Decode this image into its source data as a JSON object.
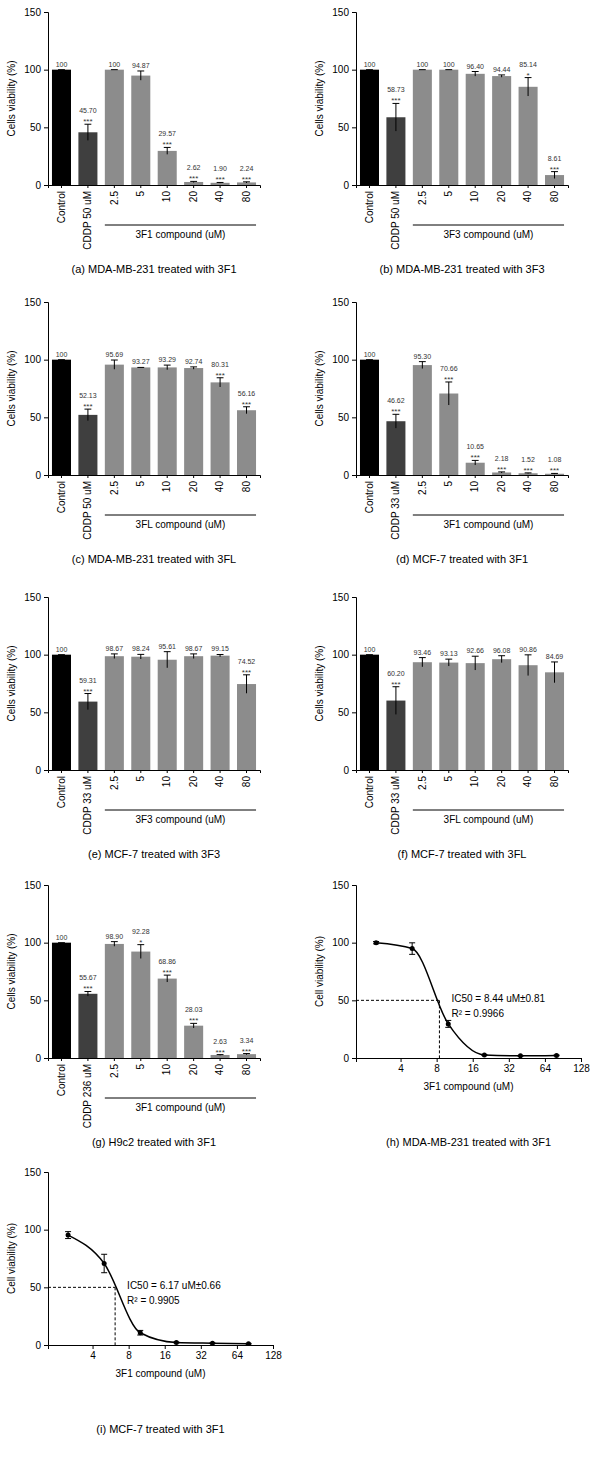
{
  "chart_data": [
    {
      "type": "bar",
      "title": "(a) MDA-MB-231 treated with 3F1",
      "y_label": "Cells viability (%)",
      "x_label": "3F1 compound (uM)",
      "categories": [
        "Control",
        "CDDP 50 uM",
        "2.5",
        "5",
        "10",
        "20",
        "40",
        "80"
      ],
      "values": [
        100,
        45.7,
        100,
        94.87,
        29.57,
        2.62,
        1.9,
        2.24
      ],
      "value_labels": [
        "100",
        "45.70",
        "100",
        "94.87",
        "29.57",
        "2.62",
        "1.90",
        "2.24"
      ],
      "errors": [
        0,
        7,
        0,
        4,
        3,
        0.5,
        0.3,
        0.5
      ],
      "significance": [
        null,
        "***",
        null,
        null,
        "***",
        "***",
        "***",
        "***"
      ],
      "colors": [
        "#000000",
        "#3f3f3f",
        "#8c8c8c",
        "#8c8c8c",
        "#8c8c8c",
        "#8c8c8c",
        "#8c8c8c",
        "#8c8c8c"
      ],
      "ylim": [
        0,
        150
      ],
      "yticks": [
        0,
        50,
        100,
        150
      ],
      "data_labels": true
    },
    {
      "type": "bar",
      "title": "(b) MDA-MB-231 treated with 3F3",
      "y_label": "Cells viability (%)",
      "x_label": "3F3 compound (uM)",
      "categories": [
        "Control",
        "CDDP 50 uM",
        "2.5",
        "5",
        "10",
        "20",
        "40",
        "80"
      ],
      "values": [
        100,
        58.73,
        100,
        100,
        96.4,
        94.44,
        85.14,
        8.61
      ],
      "value_labels": [
        "100",
        "58.73",
        "100",
        "100",
        "96.40",
        "94.44",
        "85.14",
        "8.61"
      ],
      "errors": [
        0,
        12,
        0,
        0,
        2,
        1,
        8,
        3
      ],
      "significance": [
        null,
        "***",
        null,
        null,
        null,
        null,
        "*",
        "***"
      ],
      "colors": [
        "#000000",
        "#3f3f3f",
        "#8c8c8c",
        "#8c8c8c",
        "#8c8c8c",
        "#8c8c8c",
        "#8c8c8c",
        "#8c8c8c"
      ],
      "ylim": [
        0,
        150
      ],
      "yticks": [
        0,
        50,
        100,
        150
      ],
      "data_labels": true
    },
    {
      "type": "bar",
      "title": "(c) MDA-MB-231 treated with 3FL",
      "y_label": "Cells viability (%)",
      "x_label": "3FL compound (uM)",
      "categories": [
        "Control",
        "CDDP 50 uM",
        "2.5",
        "5",
        "10",
        "20",
        "40",
        "80"
      ],
      "values": [
        100,
        52.13,
        95.69,
        93.27,
        93.29,
        92.74,
        80.31,
        56.16
      ],
      "value_labels": [
        "100",
        "52.13",
        "95.69",
        "93.27",
        "93.29",
        "92.74",
        "80.31",
        "56.16"
      ],
      "errors": [
        0,
        5,
        4,
        0,
        2,
        1,
        4,
        3
      ],
      "significance": [
        null,
        "***",
        null,
        null,
        null,
        null,
        "***",
        "***"
      ],
      "colors": [
        "#000000",
        "#3f3f3f",
        "#8c8c8c",
        "#8c8c8c",
        "#8c8c8c",
        "#8c8c8c",
        "#8c8c8c",
        "#8c8c8c"
      ],
      "ylim": [
        0,
        150
      ],
      "yticks": [
        0,
        50,
        100,
        150
      ],
      "data_labels": true
    },
    {
      "type": "bar",
      "title": "(d) MCF-7 treated with 3F1",
      "y_label": "Cells viability (%)",
      "x_label": "3F1 compound (uM)",
      "categories": [
        "Control",
        "CDDP 33 uM",
        "2.5",
        "5",
        "10",
        "20",
        "40",
        "80"
      ],
      "values": [
        100,
        46.62,
        95.3,
        70.66,
        10.65,
        2.18,
        1.52,
        1.08
      ],
      "value_labels": [
        "100",
        "46.62",
        "95.30",
        "70.66",
        "10.65",
        "2.18",
        "1.52",
        "1.08"
      ],
      "errors": [
        0,
        6,
        3,
        10,
        2,
        0.5,
        0.3,
        0.3
      ],
      "significance": [
        null,
        "***",
        null,
        "***",
        "***",
        "***",
        "***",
        "***"
      ],
      "colors": [
        "#000000",
        "#3f3f3f",
        "#8c8c8c",
        "#8c8c8c",
        "#8c8c8c",
        "#8c8c8c",
        "#8c8c8c",
        "#8c8c8c"
      ],
      "ylim": [
        0,
        150
      ],
      "yticks": [
        0,
        50,
        100,
        150
      ],
      "data_labels": true
    },
    {
      "type": "bar",
      "title": "(e) MCF-7 treated with 3F3",
      "y_label": "Cells viability (%)",
      "x_label": "3F3 compound (uM)",
      "categories": [
        "Control",
        "CDDP 33 uM",
        "2.5",
        "5",
        "10",
        "20",
        "40",
        "80"
      ],
      "values": [
        100,
        59.31,
        98.67,
        98.24,
        95.61,
        98.67,
        99.15,
        74.52
      ],
      "value_labels": [
        "100",
        "59.31",
        "98.67",
        "98.24",
        "95.61",
        "98.67",
        "99.15",
        "74.52"
      ],
      "errors": [
        0,
        7,
        2,
        2,
        7,
        2,
        1,
        8
      ],
      "significance": [
        null,
        "***",
        null,
        null,
        null,
        null,
        null,
        "***"
      ],
      "colors": [
        "#000000",
        "#3f3f3f",
        "#8c8c8c",
        "#8c8c8c",
        "#8c8c8c",
        "#8c8c8c",
        "#8c8c8c",
        "#8c8c8c"
      ],
      "ylim": [
        0,
        150
      ],
      "yticks": [
        0,
        50,
        100,
        150
      ],
      "data_labels": true
    },
    {
      "type": "bar",
      "title": "(f) MCF-7 treated with 3FL",
      "y_label": "Cells viability (%)",
      "x_label": "3FL compound (uM)",
      "categories": [
        "Control",
        "CDDP 33 uM",
        "2.5",
        "5",
        "10",
        "20",
        "40",
        "80"
      ],
      "values": [
        100,
        60.2,
        93.46,
        93.13,
        92.66,
        96.08,
        90.86,
        84.69
      ],
      "value_labels": [
        "100",
        "60.20",
        "93.46",
        "93.13",
        "92.66",
        "96.08",
        "90.86",
        "84.69"
      ],
      "errors": [
        0,
        12,
        4,
        3,
        6,
        3,
        9,
        9
      ],
      "significance": [
        null,
        "***",
        null,
        null,
        null,
        null,
        null,
        null
      ],
      "colors": [
        "#000000",
        "#3f3f3f",
        "#8c8c8c",
        "#8c8c8c",
        "#8c8c8c",
        "#8c8c8c",
        "#8c8c8c",
        "#8c8c8c"
      ],
      "ylim": [
        0,
        150
      ],
      "yticks": [
        0,
        50,
        100,
        150
      ],
      "data_labels": true
    },
    {
      "type": "bar",
      "title": "(g) H9c2 treated with 3F1",
      "y_label": "Cells viability (%)",
      "x_label": "3F1 compound (uM)",
      "categories": [
        "Control",
        "CDDP 236 uM",
        "2.5",
        "5",
        "10",
        "20",
        "40",
        "80"
      ],
      "values": [
        100,
        55.67,
        98.9,
        92.28,
        68.86,
        28.03,
        2.63,
        3.34
      ],
      "value_labels": [
        "100",
        "55.67",
        "98.90",
        "92.28",
        "68.86",
        "28.03",
        "2.63",
        "3.34"
      ],
      "errors": [
        0,
        2,
        2,
        6,
        3,
        2,
        0.3,
        0.5
      ],
      "significance": [
        null,
        "***",
        null,
        "*",
        "***",
        "***",
        "***",
        "***"
      ],
      "colors": [
        "#000000",
        "#3f3f3f",
        "#8c8c8c",
        "#8c8c8c",
        "#8c8c8c",
        "#8c8c8c",
        "#8c8c8c",
        "#8c8c8c"
      ],
      "ylim": [
        0,
        150
      ],
      "yticks": [
        0,
        50,
        100,
        150
      ],
      "data_labels": true
    },
    {
      "type": "line",
      "title": "(h) MDA-MB-231 treated with 3F1",
      "y_label": "Cell viability (%)",
      "x_label": "3F1 compound (uM)",
      "x": [
        2.5,
        5,
        10,
        20,
        40,
        80
      ],
      "values": [
        100,
        94.87,
        29.57,
        2.62,
        1.9,
        2.24
      ],
      "errors": [
        1,
        5,
        3,
        0.3,
        0.3,
        0.3
      ],
      "color": "#000000",
      "marker": "circle",
      "log": "x",
      "xlim": [
        1.7,
        128
      ],
      "xticks": [
        4,
        8,
        16,
        32,
        64,
        128
      ],
      "ylim": [
        0,
        150
      ],
      "yticks": [
        0,
        50,
        100,
        150
      ],
      "ic50": 8.44,
      "ic50_level": 50,
      "annotations": [
        "IC50 = 8.44 uM±0.81",
        "R² = 0.9966"
      ]
    },
    {
      "type": "line",
      "title": "(i) MCF-7 treated with 3F1",
      "y_label": "Cell viability (%)",
      "x_label": "3F1 compound (uM)",
      "x": [
        2.5,
        5,
        10,
        20,
        40,
        80
      ],
      "values": [
        95.3,
        70.66,
        10.65,
        2.18,
        1.52,
        1.08
      ],
      "errors": [
        3,
        8,
        2,
        0.3,
        0.3,
        0.3
      ],
      "color": "#000000",
      "marker": "circle",
      "log": "x",
      "xlim": [
        1.7,
        128
      ],
      "xticks": [
        4,
        8,
        16,
        32,
        64,
        128
      ],
      "ylim": [
        0,
        150
      ],
      "yticks": [
        0,
        50,
        100,
        150
      ],
      "ic50": 6.17,
      "ic50_level": 50,
      "annotations": [
        "IC50 = 6.17 uM±0.66",
        "R² = 0.9905"
      ]
    }
  ]
}
